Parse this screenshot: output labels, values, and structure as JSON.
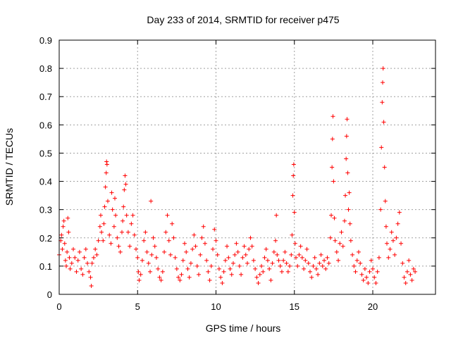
{
  "chart_data": {
    "type": "scatter",
    "title": "Day 233 of 2014, SRMTID for receiver p475",
    "xlabel": "GPS time / hours",
    "ylabel": "SRMTID / TECUs",
    "xlim": [
      0,
      24
    ],
    "ylim": [
      0,
      0.9
    ],
    "xticks": [
      0,
      5,
      10,
      15,
      20
    ],
    "yticks": [
      0,
      0.1,
      0.2,
      0.3,
      0.4,
      0.5,
      0.6,
      0.7,
      0.8,
      0.9
    ],
    "grid": true,
    "marker": "+",
    "series": [
      {
        "name": "SRMTID",
        "color": "#ff0000",
        "points": [
          [
            0.0,
            0.14
          ],
          [
            0.1,
            0.19
          ],
          [
            0.15,
            0.21
          ],
          [
            0.2,
            0.16
          ],
          [
            0.25,
            0.24
          ],
          [
            0.3,
            0.26
          ],
          [
            0.35,
            0.18
          ],
          [
            0.4,
            0.12
          ],
          [
            0.45,
            0.1
          ],
          [
            0.5,
            0.15
          ],
          [
            0.55,
            0.27
          ],
          [
            0.6,
            0.22
          ],
          [
            0.65,
            0.13
          ],
          [
            0.7,
            0.09
          ],
          [
            0.8,
            0.11
          ],
          [
            0.9,
            0.16
          ],
          [
            1.0,
            0.13
          ],
          [
            1.1,
            0.08
          ],
          [
            1.2,
            0.12
          ],
          [
            1.3,
            0.15
          ],
          [
            1.4,
            0.09
          ],
          [
            1.5,
            0.07
          ],
          [
            1.6,
            0.13
          ],
          [
            1.7,
            0.16
          ],
          [
            1.8,
            0.11
          ],
          [
            1.9,
            0.08
          ],
          [
            2.0,
            0.06
          ],
          [
            2.05,
            0.03
          ],
          [
            2.1,
            0.11
          ],
          [
            2.2,
            0.13
          ],
          [
            2.3,
            0.16
          ],
          [
            2.4,
            0.14
          ],
          [
            2.5,
            0.19
          ],
          [
            2.6,
            0.24
          ],
          [
            2.65,
            0.28
          ],
          [
            2.7,
            0.22
          ],
          [
            2.8,
            0.19
          ],
          [
            2.85,
            0.25
          ],
          [
            2.9,
            0.31
          ],
          [
            2.95,
            0.38
          ],
          [
            3.0,
            0.43
          ],
          [
            3.02,
            0.47
          ],
          [
            3.05,
            0.46
          ],
          [
            3.1,
            0.33
          ],
          [
            3.2,
            0.21
          ],
          [
            3.3,
            0.18
          ],
          [
            3.35,
            0.36
          ],
          [
            3.4,
            0.3
          ],
          [
            3.5,
            0.24
          ],
          [
            3.55,
            0.34
          ],
          [
            3.6,
            0.28
          ],
          [
            3.7,
            0.2
          ],
          [
            3.8,
            0.17
          ],
          [
            3.9,
            0.15
          ],
          [
            4.0,
            0.22
          ],
          [
            4.05,
            0.26
          ],
          [
            4.1,
            0.31
          ],
          [
            4.15,
            0.37
          ],
          [
            4.2,
            0.42
          ],
          [
            4.25,
            0.39
          ],
          [
            4.3,
            0.28
          ],
          [
            4.4,
            0.22
          ],
          [
            4.5,
            0.17
          ],
          [
            4.6,
            0.25
          ],
          [
            4.7,
            0.28
          ],
          [
            4.8,
            0.21
          ],
          [
            4.9,
            0.16
          ],
          [
            5.0,
            0.13
          ],
          [
            5.05,
            0.08
          ],
          [
            5.1,
            0.05
          ],
          [
            5.2,
            0.07
          ],
          [
            5.3,
            0.12
          ],
          [
            5.4,
            0.19
          ],
          [
            5.5,
            0.22
          ],
          [
            5.6,
            0.15
          ],
          [
            5.7,
            0.11
          ],
          [
            5.8,
            0.08
          ],
          [
            5.85,
            0.33
          ],
          [
            5.9,
            0.14
          ],
          [
            6.0,
            0.2
          ],
          [
            6.1,
            0.17
          ],
          [
            6.2,
            0.13
          ],
          [
            6.3,
            0.09
          ],
          [
            6.4,
            0.06
          ],
          [
            6.5,
            0.05
          ],
          [
            6.6,
            0.08
          ],
          [
            6.7,
            0.15
          ],
          [
            6.8,
            0.22
          ],
          [
            6.9,
            0.28
          ],
          [
            7.0,
            0.19
          ],
          [
            7.1,
            0.14
          ],
          [
            7.2,
            0.25
          ],
          [
            7.3,
            0.2
          ],
          [
            7.4,
            0.13
          ],
          [
            7.5,
            0.09
          ],
          [
            7.6,
            0.06
          ],
          [
            7.7,
            0.05
          ],
          [
            7.8,
            0.07
          ],
          [
            7.9,
            0.12
          ],
          [
            8.0,
            0.18
          ],
          [
            8.1,
            0.15
          ],
          [
            8.2,
            0.09
          ],
          [
            8.3,
            0.06
          ],
          [
            8.4,
            0.11
          ],
          [
            8.5,
            0.16
          ],
          [
            8.6,
            0.21
          ],
          [
            8.7,
            0.17
          ],
          [
            8.8,
            0.1
          ],
          [
            8.9,
            0.07
          ],
          [
            9.0,
            0.14
          ],
          [
            9.1,
            0.2
          ],
          [
            9.2,
            0.24
          ],
          [
            9.3,
            0.18
          ],
          [
            9.4,
            0.12
          ],
          [
            9.5,
            0.08
          ],
          [
            9.6,
            0.05
          ],
          [
            9.7,
            0.1
          ],
          [
            9.8,
            0.16
          ],
          [
            9.9,
            0.23
          ],
          [
            10.0,
            0.19
          ],
          [
            10.1,
            0.14
          ],
          [
            10.2,
            0.09
          ],
          [
            10.3,
            0.06
          ],
          [
            10.4,
            0.04
          ],
          [
            10.5,
            0.08
          ],
          [
            10.6,
            0.12
          ],
          [
            10.7,
            0.17
          ],
          [
            10.8,
            0.13
          ],
          [
            10.9,
            0.09
          ],
          [
            11.0,
            0.07
          ],
          [
            11.1,
            0.11
          ],
          [
            11.2,
            0.14
          ],
          [
            11.3,
            0.18
          ],
          [
            11.4,
            0.15
          ],
          [
            11.5,
            0.1
          ],
          [
            11.6,
            0.07
          ],
          [
            11.7,
            0.13
          ],
          [
            11.8,
            0.17
          ],
          [
            11.9,
            0.14
          ],
          [
            12.0,
            0.11
          ],
          [
            12.1,
            0.16
          ],
          [
            12.2,
            0.2
          ],
          [
            12.3,
            0.17
          ],
          [
            12.4,
            0.12
          ],
          [
            12.5,
            0.09
          ],
          [
            12.6,
            0.06
          ],
          [
            12.7,
            0.04
          ],
          [
            12.8,
            0.07
          ],
          [
            12.9,
            0.1
          ],
          [
            13.0,
            0.08
          ],
          [
            13.1,
            0.13
          ],
          [
            13.2,
            0.16
          ],
          [
            13.3,
            0.12
          ],
          [
            13.4,
            0.09
          ],
          [
            13.5,
            0.05
          ],
          [
            13.6,
            0.11
          ],
          [
            13.7,
            0.15
          ],
          [
            13.8,
            0.19
          ],
          [
            13.85,
            0.28
          ],
          [
            13.9,
            0.14
          ],
          [
            14.0,
            0.12
          ],
          [
            14.1,
            0.1
          ],
          [
            14.2,
            0.08
          ],
          [
            14.3,
            0.12
          ],
          [
            14.4,
            0.15
          ],
          [
            14.5,
            0.11
          ],
          [
            14.6,
            0.08
          ],
          [
            14.7,
            0.1
          ],
          [
            14.8,
            0.14
          ],
          [
            14.85,
            0.21
          ],
          [
            14.9,
            0.35
          ],
          [
            14.93,
            0.42
          ],
          [
            14.96,
            0.46
          ],
          [
            15.0,
            0.29
          ],
          [
            15.05,
            0.18
          ],
          [
            15.1,
            0.13
          ],
          [
            15.2,
            0.1
          ],
          [
            15.3,
            0.14
          ],
          [
            15.4,
            0.17
          ],
          [
            15.5,
            0.13
          ],
          [
            15.6,
            0.09
          ],
          [
            15.7,
            0.12
          ],
          [
            15.8,
            0.16
          ],
          [
            15.9,
            0.11
          ],
          [
            16.0,
            0.08
          ],
          [
            16.1,
            0.06
          ],
          [
            16.2,
            0.1
          ],
          [
            16.3,
            0.13
          ],
          [
            16.4,
            0.09
          ],
          [
            16.5,
            0.07
          ],
          [
            16.6,
            0.11
          ],
          [
            16.7,
            0.14
          ],
          [
            16.8,
            0.1
          ],
          [
            16.9,
            0.12
          ],
          [
            17.0,
            0.09
          ],
          [
            17.1,
            0.13
          ],
          [
            17.2,
            0.11
          ],
          [
            17.3,
            0.2
          ],
          [
            17.35,
            0.28
          ],
          [
            17.4,
            0.45
          ],
          [
            17.43,
            0.55
          ],
          [
            17.46,
            0.63
          ],
          [
            17.5,
            0.4
          ],
          [
            17.55,
            0.27
          ],
          [
            17.6,
            0.19
          ],
          [
            17.7,
            0.15
          ],
          [
            17.8,
            0.12
          ],
          [
            17.9,
            0.18
          ],
          [
            18.0,
            0.22
          ],
          [
            18.1,
            0.17
          ],
          [
            18.2,
            0.26
          ],
          [
            18.25,
            0.35
          ],
          [
            18.3,
            0.48
          ],
          [
            18.33,
            0.56
          ],
          [
            18.36,
            0.62
          ],
          [
            18.4,
            0.43
          ],
          [
            18.45,
            0.3
          ],
          [
            18.5,
            0.36
          ],
          [
            18.55,
            0.25
          ],
          [
            18.6,
            0.19
          ],
          [
            18.7,
            0.14
          ],
          [
            18.8,
            0.1
          ],
          [
            18.9,
            0.08
          ],
          [
            19.0,
            0.12
          ],
          [
            19.1,
            0.15
          ],
          [
            19.2,
            0.11
          ],
          [
            19.3,
            0.07
          ],
          [
            19.4,
            0.05
          ],
          [
            19.5,
            0.09
          ],
          [
            19.6,
            0.06
          ],
          [
            19.7,
            0.04
          ],
          [
            19.8,
            0.08
          ],
          [
            19.9,
            0.12
          ],
          [
            20.0,
            0.09
          ],
          [
            20.1,
            0.06
          ],
          [
            20.2,
            0.04
          ],
          [
            20.3,
            0.08
          ],
          [
            20.4,
            0.13
          ],
          [
            20.5,
            0.3
          ],
          [
            20.55,
            0.52
          ],
          [
            20.6,
            0.68
          ],
          [
            20.63,
            0.75
          ],
          [
            20.66,
            0.8
          ],
          [
            20.7,
            0.61
          ],
          [
            20.75,
            0.45
          ],
          [
            20.8,
            0.33
          ],
          [
            20.85,
            0.24
          ],
          [
            20.9,
            0.18
          ],
          [
            21.0,
            0.13
          ],
          [
            21.1,
            0.16
          ],
          [
            21.2,
            0.22
          ],
          [
            21.3,
            0.19
          ],
          [
            21.4,
            0.14
          ],
          [
            21.5,
            0.2
          ],
          [
            21.6,
            0.25
          ],
          [
            21.7,
            0.29
          ],
          [
            21.8,
            0.18
          ],
          [
            21.9,
            0.11
          ],
          [
            22.0,
            0.06
          ],
          [
            22.1,
            0.04
          ],
          [
            22.2,
            0.08
          ],
          [
            22.3,
            0.12
          ],
          [
            22.4,
            0.07
          ],
          [
            22.5,
            0.05
          ],
          [
            22.6,
            0.09
          ],
          [
            22.7,
            0.08
          ]
        ]
      }
    ]
  }
}
